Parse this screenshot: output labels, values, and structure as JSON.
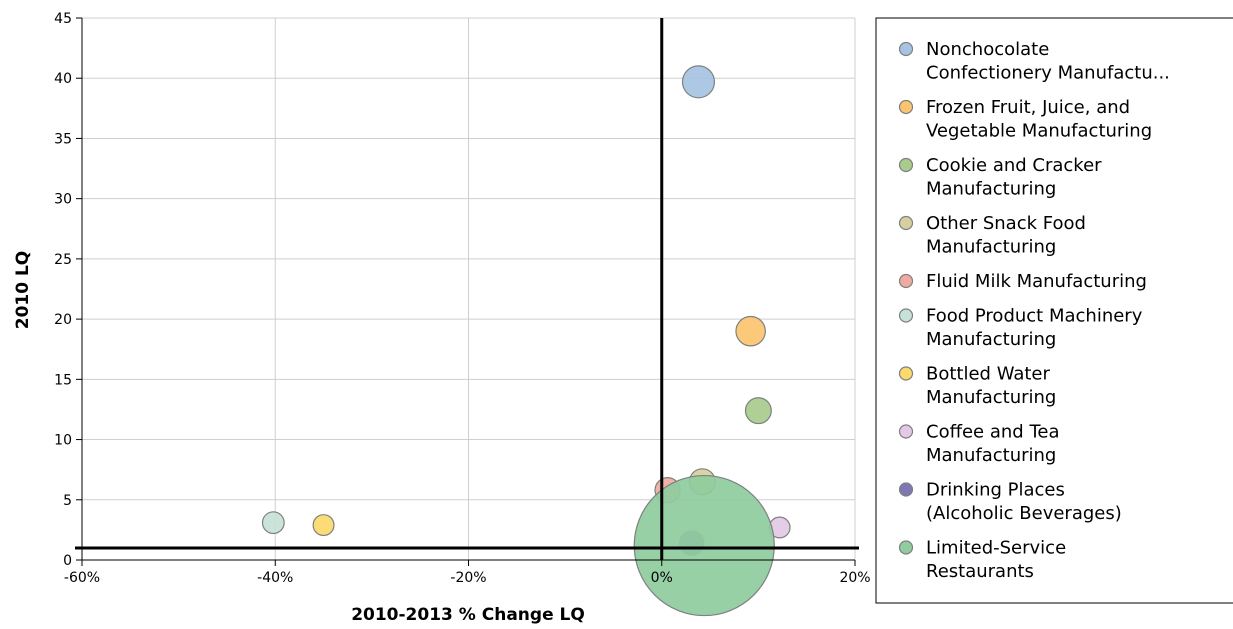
{
  "chart_data": {
    "type": "scatter",
    "subtype": "bubble",
    "xlabel": "2010-2013 % Change LQ",
    "ylabel": "2010 LQ",
    "xlim": [
      -60,
      20
    ],
    "ylim": [
      0,
      45
    ],
    "x_ticks": [
      -60,
      -40,
      -20,
      0,
      20
    ],
    "x_tick_labels": [
      "-60%",
      "-40%",
      "-20%",
      "0%",
      "20%"
    ],
    "y_ticks": [
      0,
      5,
      10,
      15,
      20,
      25,
      30,
      35,
      40,
      45
    ],
    "y_tick_labels": [
      "0",
      "5",
      "10",
      "15",
      "20",
      "25",
      "30",
      "35",
      "40",
      "45"
    ],
    "grid": true,
    "reference_lines": {
      "x": 0,
      "y": 1
    },
    "legend_position": "right",
    "series": [
      {
        "name": "Nonchocolate Confectionery Manufactu...",
        "legend_lines": [
          "Nonchocolate",
          "Confectionery Manufactu..."
        ],
        "color": "#a6c3e3",
        "x": 3.8,
        "y": 39.7,
        "size": 1.3
      },
      {
        "name": "Frozen Fruit, Juice, and Vegetable Manufacturing",
        "legend_lines": [
          "Frozen Fruit, Juice, and",
          "Vegetable Manufacturing"
        ],
        "color": "#fcc46f",
        "x": 9.2,
        "y": 19.0,
        "size": 1.1
      },
      {
        "name": "Cookie and Cracker Manufacturing",
        "legend_lines": [
          "Cookie and Cracker",
          "Manufacturing"
        ],
        "color": "#a7cc8d",
        "x": 10.0,
        "y": 12.4,
        "size": 0.85
      },
      {
        "name": "Other Snack Food Manufacturing",
        "legend_lines": [
          "Other Snack Food",
          "Manufacturing"
        ],
        "color": "#d6d0a0",
        "x": 4.2,
        "y": 6.5,
        "size": 0.85
      },
      {
        "name": "Fluid Milk Manufacturing",
        "legend_lines": [
          "Fluid Milk Manufacturing"
        ],
        "color": "#efaaa2",
        "x": 0.6,
        "y": 5.8,
        "size": 0.8
      },
      {
        "name": "Food Product Machinery Manufacturing",
        "legend_lines": [
          "Food Product Machinery",
          "Manufacturing"
        ],
        "color": "#c6e2d6",
        "x": -40.2,
        "y": 3.1,
        "size": 0.6
      },
      {
        "name": "Bottled Water Manufacturing",
        "legend_lines": [
          "Bottled Water",
          "Manufacturing"
        ],
        "color": "#fbd96a",
        "x": -35.0,
        "y": 2.9,
        "size": 0.55
      },
      {
        "name": "Coffee and Tea Manufacturing",
        "legend_lines": [
          "Coffee and Tea",
          "Manufacturing"
        ],
        "color": "#e3c9e6",
        "x": 12.2,
        "y": 2.7,
        "size": 0.55
      },
      {
        "name": "Drinking Places (Alcoholic Beverages)",
        "legend_lines": [
          "Drinking Places",
          "(Alcoholic Beverages)"
        ],
        "color": "#7d78b4",
        "x": 3.1,
        "y": 1.4,
        "size": 0.75
      },
      {
        "name": "Limited-Service Restaurants",
        "legend_lines": [
          "Limited-Service",
          "Restaurants"
        ],
        "color": "#8fcc9e",
        "x": 4.4,
        "y": 1.2,
        "size": 25
      }
    ]
  }
}
